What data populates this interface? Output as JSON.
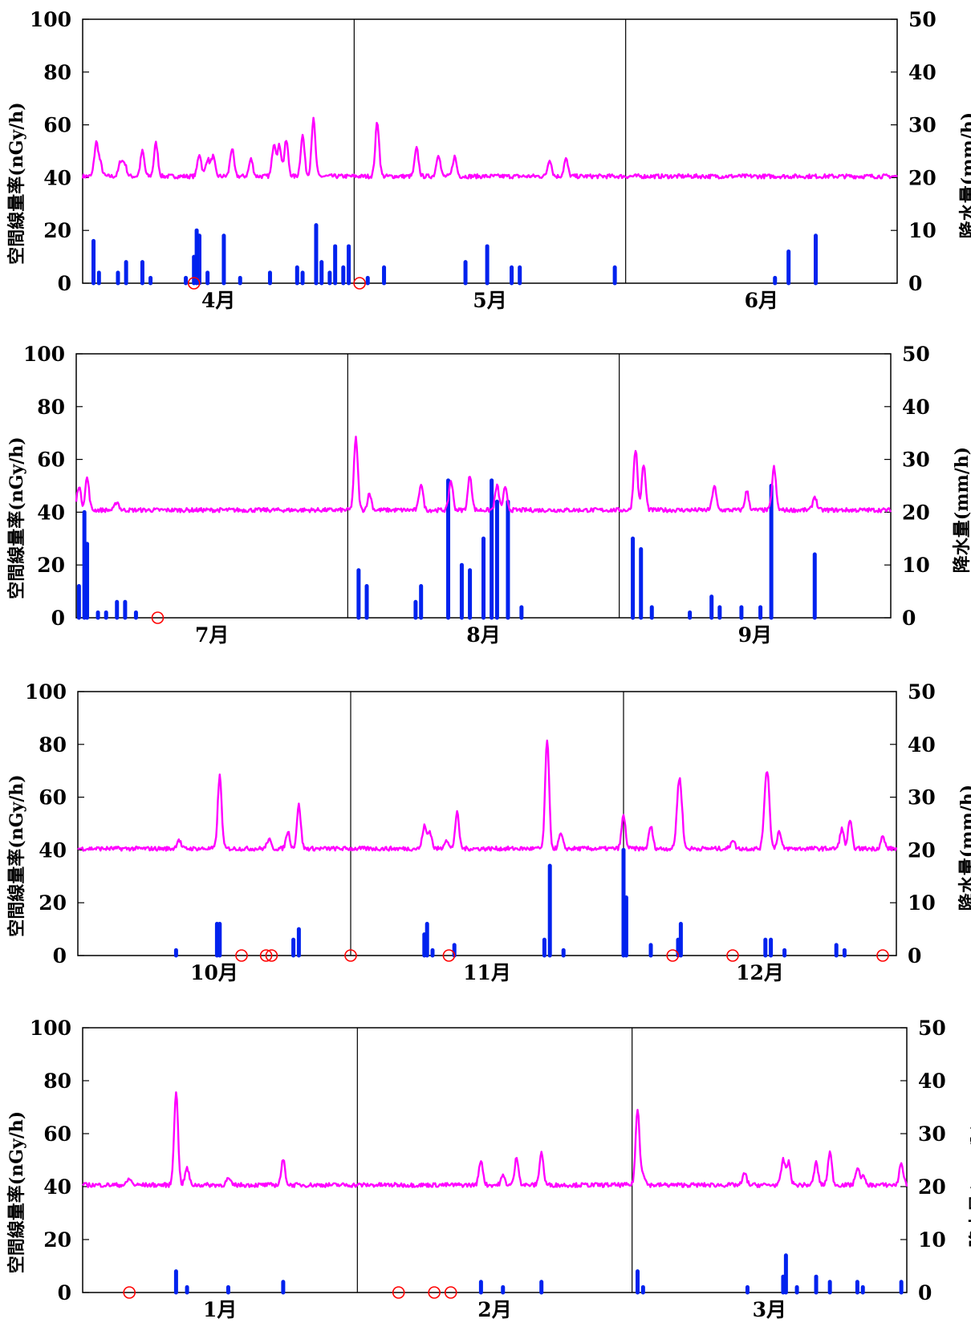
{
  "colors": {
    "dose_line": "#ff00ff",
    "rain_bar": "#0022ee",
    "no_rain_marker": "#ff0000",
    "axis": "#000000"
  },
  "chart_data": [
    {
      "type": "line",
      "months": [
        "4月",
        "5月",
        "6月"
      ],
      "ylabel_left": "空間線量率(nGy/h)",
      "ylabel_right": "降水量(mm/h)",
      "ylim_left": [
        0,
        100
      ],
      "ylim_right": [
        0,
        50
      ],
      "yticks_left": [
        "0",
        "20",
        "40",
        "60",
        "80",
        "100"
      ],
      "yticks_right": [
        "0",
        "10",
        "20",
        "30",
        "40",
        "50"
      ],
      "grid": false,
      "baseline": 40.5,
      "dose_peaks": [
        {
          "x": 0.05,
          "y": 53
        },
        {
          "x": 0.065,
          "y": 45
        },
        {
          "x": 0.14,
          "y": 46
        },
        {
          "x": 0.155,
          "y": 45
        },
        {
          "x": 0.22,
          "y": 50
        },
        {
          "x": 0.27,
          "y": 53
        },
        {
          "x": 0.43,
          "y": 49
        },
        {
          "x": 0.46,
          "y": 47
        },
        {
          "x": 0.48,
          "y": 48
        },
        {
          "x": 0.55,
          "y": 51
        },
        {
          "x": 0.62,
          "y": 47
        },
        {
          "x": 0.705,
          "y": 53
        },
        {
          "x": 0.725,
          "y": 52
        },
        {
          "x": 0.75,
          "y": 54
        },
        {
          "x": 0.81,
          "y": 56
        },
        {
          "x": 0.85,
          "y": 62
        },
        {
          "x": 1.085,
          "y": 61
        },
        {
          "x": 1.23,
          "y": 51
        },
        {
          "x": 1.31,
          "y": 49
        },
        {
          "x": 1.37,
          "y": 48
        },
        {
          "x": 1.72,
          "y": 47
        },
        {
          "x": 1.78,
          "y": 47
        }
      ],
      "rain": [
        {
          "x": 0.04,
          "mm": 8
        },
        {
          "x": 0.06,
          "mm": 2
        },
        {
          "x": 0.13,
          "mm": 2
        },
        {
          "x": 0.16,
          "mm": 4
        },
        {
          "x": 0.22,
          "mm": 4
        },
        {
          "x": 0.25,
          "mm": 1
        },
        {
          "x": 0.38,
          "mm": 1
        },
        {
          "x": 0.41,
          "mm": 5
        },
        {
          "x": 0.42,
          "mm": 10
        },
        {
          "x": 0.43,
          "mm": 9
        },
        {
          "x": 0.46,
          "mm": 2
        },
        {
          "x": 0.52,
          "mm": 9
        },
        {
          "x": 0.58,
          "mm": 1
        },
        {
          "x": 0.69,
          "mm": 2
        },
        {
          "x": 0.79,
          "mm": 3
        },
        {
          "x": 0.81,
          "mm": 2
        },
        {
          "x": 0.86,
          "mm": 11
        },
        {
          "x": 0.88,
          "mm": 4
        },
        {
          "x": 0.91,
          "mm": 2
        },
        {
          "x": 0.93,
          "mm": 7
        },
        {
          "x": 0.96,
          "mm": 3
        },
        {
          "x": 0.98,
          "mm": 7
        },
        {
          "x": 1.05,
          "mm": 1
        },
        {
          "x": 1.11,
          "mm": 3
        },
        {
          "x": 1.41,
          "mm": 4
        },
        {
          "x": 1.49,
          "mm": 7
        },
        {
          "x": 1.58,
          "mm": 3
        },
        {
          "x": 1.61,
          "mm": 3
        },
        {
          "x": 1.96,
          "mm": 3
        },
        {
          "x": 2.55,
          "mm": 1
        },
        {
          "x": 2.6,
          "mm": 6
        },
        {
          "x": 2.7,
          "mm": 9
        }
      ],
      "no_rain_days": [
        0.41,
        1.02
      ]
    },
    {
      "type": "line",
      "months": [
        "7月",
        "8月",
        "9月"
      ],
      "ylabel_left": "空間線量率(nGy/h)",
      "ylabel_right": "降水量(mm/h)",
      "ylim_left": [
        0,
        100
      ],
      "ylim_right": [
        0,
        50
      ],
      "yticks_left": [
        "0",
        "20",
        "40",
        "60",
        "80",
        "100"
      ],
      "yticks_right": [
        "0",
        "10",
        "20",
        "30",
        "40",
        "50"
      ],
      "grid": false,
      "baseline": 40.8,
      "dose_peaks": [
        {
          "x": 0.01,
          "y": 50
        },
        {
          "x": 0.04,
          "y": 53
        },
        {
          "x": 0.15,
          "y": 44
        },
        {
          "x": 1.03,
          "y": 68
        },
        {
          "x": 1.08,
          "y": 47
        },
        {
          "x": 1.27,
          "y": 51
        },
        {
          "x": 1.38,
          "y": 52
        },
        {
          "x": 1.45,
          "y": 54
        },
        {
          "x": 1.55,
          "y": 50
        },
        {
          "x": 1.58,
          "y": 49
        },
        {
          "x": 2.06,
          "y": 64
        },
        {
          "x": 2.09,
          "y": 58
        },
        {
          "x": 2.35,
          "y": 50
        },
        {
          "x": 2.47,
          "y": 48
        },
        {
          "x": 2.57,
          "y": 57
        },
        {
          "x": 2.72,
          "y": 46
        }
      ],
      "rain": [
        {
          "x": 0.01,
          "mm": 6
        },
        {
          "x": 0.03,
          "mm": 20
        },
        {
          "x": 0.04,
          "mm": 14
        },
        {
          "x": 0.08,
          "mm": 1
        },
        {
          "x": 0.11,
          "mm": 1
        },
        {
          "x": 0.15,
          "mm": 3
        },
        {
          "x": 0.18,
          "mm": 3
        },
        {
          "x": 0.22,
          "mm": 1
        },
        {
          "x": 1.04,
          "mm": 9
        },
        {
          "x": 1.07,
          "mm": 6
        },
        {
          "x": 1.25,
          "mm": 3
        },
        {
          "x": 1.27,
          "mm": 6
        },
        {
          "x": 1.37,
          "mm": 26
        },
        {
          "x": 1.42,
          "mm": 10
        },
        {
          "x": 1.45,
          "mm": 9
        },
        {
          "x": 1.5,
          "mm": 15
        },
        {
          "x": 1.53,
          "mm": 26
        },
        {
          "x": 1.55,
          "mm": 22
        },
        {
          "x": 1.59,
          "mm": 22
        },
        {
          "x": 1.64,
          "mm": 2
        },
        {
          "x": 2.05,
          "mm": 15
        },
        {
          "x": 2.08,
          "mm": 13
        },
        {
          "x": 2.12,
          "mm": 2
        },
        {
          "x": 2.26,
          "mm": 1
        },
        {
          "x": 2.34,
          "mm": 4
        },
        {
          "x": 2.37,
          "mm": 2
        },
        {
          "x": 2.45,
          "mm": 2
        },
        {
          "x": 2.52,
          "mm": 2
        },
        {
          "x": 2.56,
          "mm": 25
        },
        {
          "x": 2.72,
          "mm": 12
        }
      ],
      "no_rain_days": [
        0.3
      ]
    },
    {
      "type": "line",
      "months": [
        "10月",
        "11月",
        "12月"
      ],
      "ylabel_left": "空間線量率(nGy/h)",
      "ylabel_right": "降水量(mm/h)",
      "ylim_left": [
        0,
        100
      ],
      "ylim_right": [
        0,
        50
      ],
      "yticks_left": [
        "0",
        "20",
        "40",
        "60",
        "80",
        "100"
      ],
      "yticks_right": [
        "0",
        "10",
        "20",
        "30",
        "40",
        "50"
      ],
      "grid": false,
      "baseline": 40.5,
      "dose_peaks": [
        {
          "x": 0.37,
          "y": 44
        },
        {
          "x": 0.52,
          "y": 68
        },
        {
          "x": 0.7,
          "y": 44
        },
        {
          "x": 0.77,
          "y": 47
        },
        {
          "x": 0.81,
          "y": 57
        },
        {
          "x": 1.27,
          "y": 49
        },
        {
          "x": 1.29,
          "y": 47
        },
        {
          "x": 1.35,
          "y": 44
        },
        {
          "x": 1.39,
          "y": 54
        },
        {
          "x": 1.72,
          "y": 82
        },
        {
          "x": 1.77,
          "y": 46
        },
        {
          "x": 2.0,
          "y": 53
        },
        {
          "x": 2.1,
          "y": 49
        },
        {
          "x": 2.2,
          "y": 57
        },
        {
          "x": 2.21,
          "y": 58
        },
        {
          "x": 2.4,
          "y": 44
        },
        {
          "x": 2.52,
          "y": 58
        },
        {
          "x": 2.53,
          "y": 61
        },
        {
          "x": 2.57,
          "y": 47
        },
        {
          "x": 2.8,
          "y": 48
        },
        {
          "x": 2.83,
          "y": 51
        },
        {
          "x": 2.95,
          "y": 45
        }
      ],
      "rain": [
        {
          "x": 0.36,
          "mm": 1
        },
        {
          "x": 0.51,
          "mm": 6
        },
        {
          "x": 0.52,
          "mm": 6
        },
        {
          "x": 0.79,
          "mm": 3
        },
        {
          "x": 0.81,
          "mm": 5
        },
        {
          "x": 1.27,
          "mm": 4
        },
        {
          "x": 1.28,
          "mm": 6
        },
        {
          "x": 1.3,
          "mm": 1
        },
        {
          "x": 1.38,
          "mm": 2
        },
        {
          "x": 1.71,
          "mm": 3
        },
        {
          "x": 1.73,
          "mm": 17
        },
        {
          "x": 1.78,
          "mm": 1
        },
        {
          "x": 2.0,
          "mm": 20
        },
        {
          "x": 2.01,
          "mm": 11
        },
        {
          "x": 2.1,
          "mm": 2
        },
        {
          "x": 2.2,
          "mm": 3
        },
        {
          "x": 2.21,
          "mm": 6
        },
        {
          "x": 2.52,
          "mm": 3
        },
        {
          "x": 2.54,
          "mm": 3
        },
        {
          "x": 2.59,
          "mm": 1
        },
        {
          "x": 2.78,
          "mm": 2
        },
        {
          "x": 2.81,
          "mm": 1
        }
      ],
      "no_rain_days": [
        0.6,
        0.69,
        0.71,
        1.0,
        1.36,
        2.18,
        2.4,
        2.95
      ]
    },
    {
      "type": "line",
      "months": [
        "1月",
        "2月",
        "3月"
      ],
      "ylabel_left": "空間線量率(nGy/h)",
      "ylabel_right": "降水量(mm/h)",
      "ylim_left": [
        0,
        100
      ],
      "ylim_right": [
        0,
        50
      ],
      "yticks_left": [
        "0",
        "20",
        "40",
        "60",
        "80",
        "100"
      ],
      "yticks_right": [
        "0",
        "10",
        "20",
        "30",
        "40",
        "50"
      ],
      "grid": false,
      "baseline": 40.6,
      "dose_peaks": [
        {
          "x": 0.17,
          "y": 43
        },
        {
          "x": 0.34,
          "y": 76
        },
        {
          "x": 0.38,
          "y": 47
        },
        {
          "x": 0.53,
          "y": 43
        },
        {
          "x": 0.73,
          "y": 50
        },
        {
          "x": 1.45,
          "y": 50
        },
        {
          "x": 1.53,
          "y": 44
        },
        {
          "x": 1.58,
          "y": 51
        },
        {
          "x": 1.67,
          "y": 53
        },
        {
          "x": 2.02,
          "y": 69
        },
        {
          "x": 2.04,
          "y": 45
        },
        {
          "x": 2.41,
          "y": 45
        },
        {
          "x": 2.55,
          "y": 50
        },
        {
          "x": 2.57,
          "y": 49
        },
        {
          "x": 2.67,
          "y": 49
        },
        {
          "x": 2.72,
          "y": 53
        },
        {
          "x": 2.82,
          "y": 47
        },
        {
          "x": 2.84,
          "y": 44
        },
        {
          "x": 2.98,
          "y": 49
        }
      ],
      "rain": [
        {
          "x": 0.34,
          "mm": 4
        },
        {
          "x": 0.38,
          "mm": 1
        },
        {
          "x": 0.53,
          "mm": 1
        },
        {
          "x": 0.73,
          "mm": 2
        },
        {
          "x": 1.45,
          "mm": 2
        },
        {
          "x": 1.53,
          "mm": 1
        },
        {
          "x": 1.67,
          "mm": 2
        },
        {
          "x": 2.02,
          "mm": 4
        },
        {
          "x": 2.04,
          "mm": 1
        },
        {
          "x": 2.42,
          "mm": 1
        },
        {
          "x": 2.55,
          "mm": 3
        },
        {
          "x": 2.56,
          "mm": 7
        },
        {
          "x": 2.6,
          "mm": 1
        },
        {
          "x": 2.67,
          "mm": 3
        },
        {
          "x": 2.72,
          "mm": 2
        },
        {
          "x": 2.82,
          "mm": 2
        },
        {
          "x": 2.84,
          "mm": 1
        },
        {
          "x": 2.98,
          "mm": 2
        }
      ],
      "no_rain_days": [
        0.17,
        1.15,
        1.28,
        1.34
      ]
    }
  ]
}
